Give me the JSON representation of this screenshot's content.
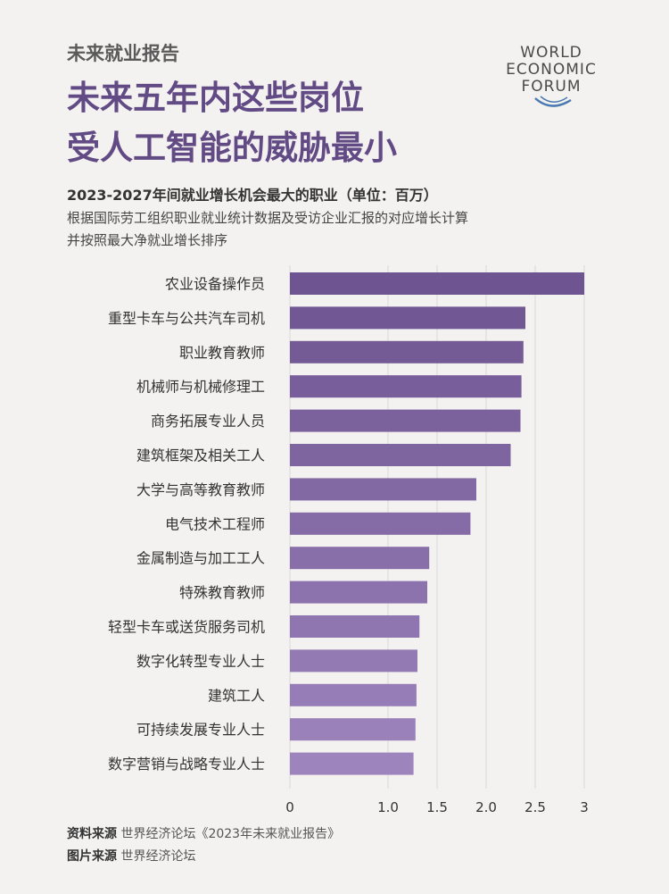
{
  "header": {
    "kicker": "未来就业报告",
    "title_line1": "未来五年内这些岗位",
    "title_line2": "受人工智能的威胁最小"
  },
  "logo": {
    "line1": "WORLD",
    "line2": "ECONOMIC",
    "line3": "FORUM"
  },
  "subtitle": "2023-2027年间就业增长机会最大的职业（单位：百万）",
  "note_line1": "根据国际劳工组织职业就业统计数据及受访企业汇报的对应增长计算",
  "note_line2": "并按照最大净就业增长排序",
  "chart_data": {
    "type": "bar",
    "orientation": "horizontal",
    "categories": [
      "农业设备操作员",
      "重型卡车与公共汽车司机",
      "职业教育教师",
      "机械师与机械修理工",
      "商务拓展专业人员",
      "建筑框架及相关工人",
      "大学与高等教育教师",
      "电气技术工程师",
      "金属制造与加工工人",
      "特殊教育教师",
      "轻型卡车或送货服务司机",
      "数字化转型专业人士",
      "建筑工人",
      "可持续发展专业人士",
      "数字营销与战略专业人士"
    ],
    "values": [
      3.0,
      2.4,
      2.38,
      2.36,
      2.35,
      2.25,
      1.9,
      1.84,
      1.42,
      1.4,
      1.32,
      1.3,
      1.29,
      1.28,
      1.26
    ],
    "xlim": [
      0,
      3
    ],
    "xticks": [
      "0",
      "1.0",
      "1.5",
      "2.0",
      "2.5",
      "3"
    ],
    "xtick_values": [
      0,
      1.0,
      1.5,
      2.0,
      2.5,
      3.0
    ],
    "grid": true,
    "colors": {
      "bar_top": "#6e5490",
      "bar_bottom": "#9e84bd",
      "grid": "#d8d6d6"
    }
  },
  "sources": {
    "data_label": "资料来源",
    "data_text": "世界经济论坛《2023年未来就业报告》",
    "image_label": "图片来源",
    "image_text": "世界经济论坛"
  }
}
